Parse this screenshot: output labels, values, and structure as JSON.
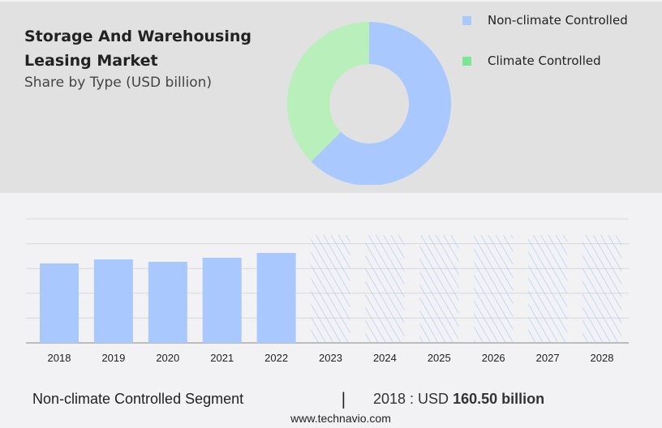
{
  "header": {
    "title": "Storage And Warehousing Leasing Market",
    "subtitle": "Share by Type (USD billion)"
  },
  "colors": {
    "non_climate": "#a8c8fe",
    "climate_pie": "#b8efbb",
    "climate_legend": "#79e595",
    "hatch": "#a8c8fe"
  },
  "chart_data": [
    {
      "type": "pie",
      "variant": "donut",
      "legend_placement": "top-right",
      "labels": [
        "Non-climate Controlled",
        "Climate Controlled"
      ],
      "values": [
        62.5,
        37.5
      ]
    },
    {
      "type": "bar",
      "categories": [
        "2018",
        "2019",
        "2020",
        "2021",
        "2022",
        "2023",
        "2024",
        "2025",
        "2026",
        "2027",
        "2028"
      ],
      "series": [
        {
          "values": [
            160.5,
            168.7,
            163.8,
            172.0,
            181.8,
            null,
            null,
            null,
            null,
            null,
            null
          ]
        }
      ],
      "forecast_categories": [
        "2023",
        "2024",
        "2025",
        "2026",
        "2027",
        "2028"
      ],
      "grid": true,
      "yaxis_labels": false
    }
  ],
  "footer": {
    "segment": "Non-climate Controlled Segment",
    "separator": "|",
    "value_prefix": "2018 : USD ",
    "value_bold": "160.50 billion",
    "website": "www.technavio.com"
  }
}
